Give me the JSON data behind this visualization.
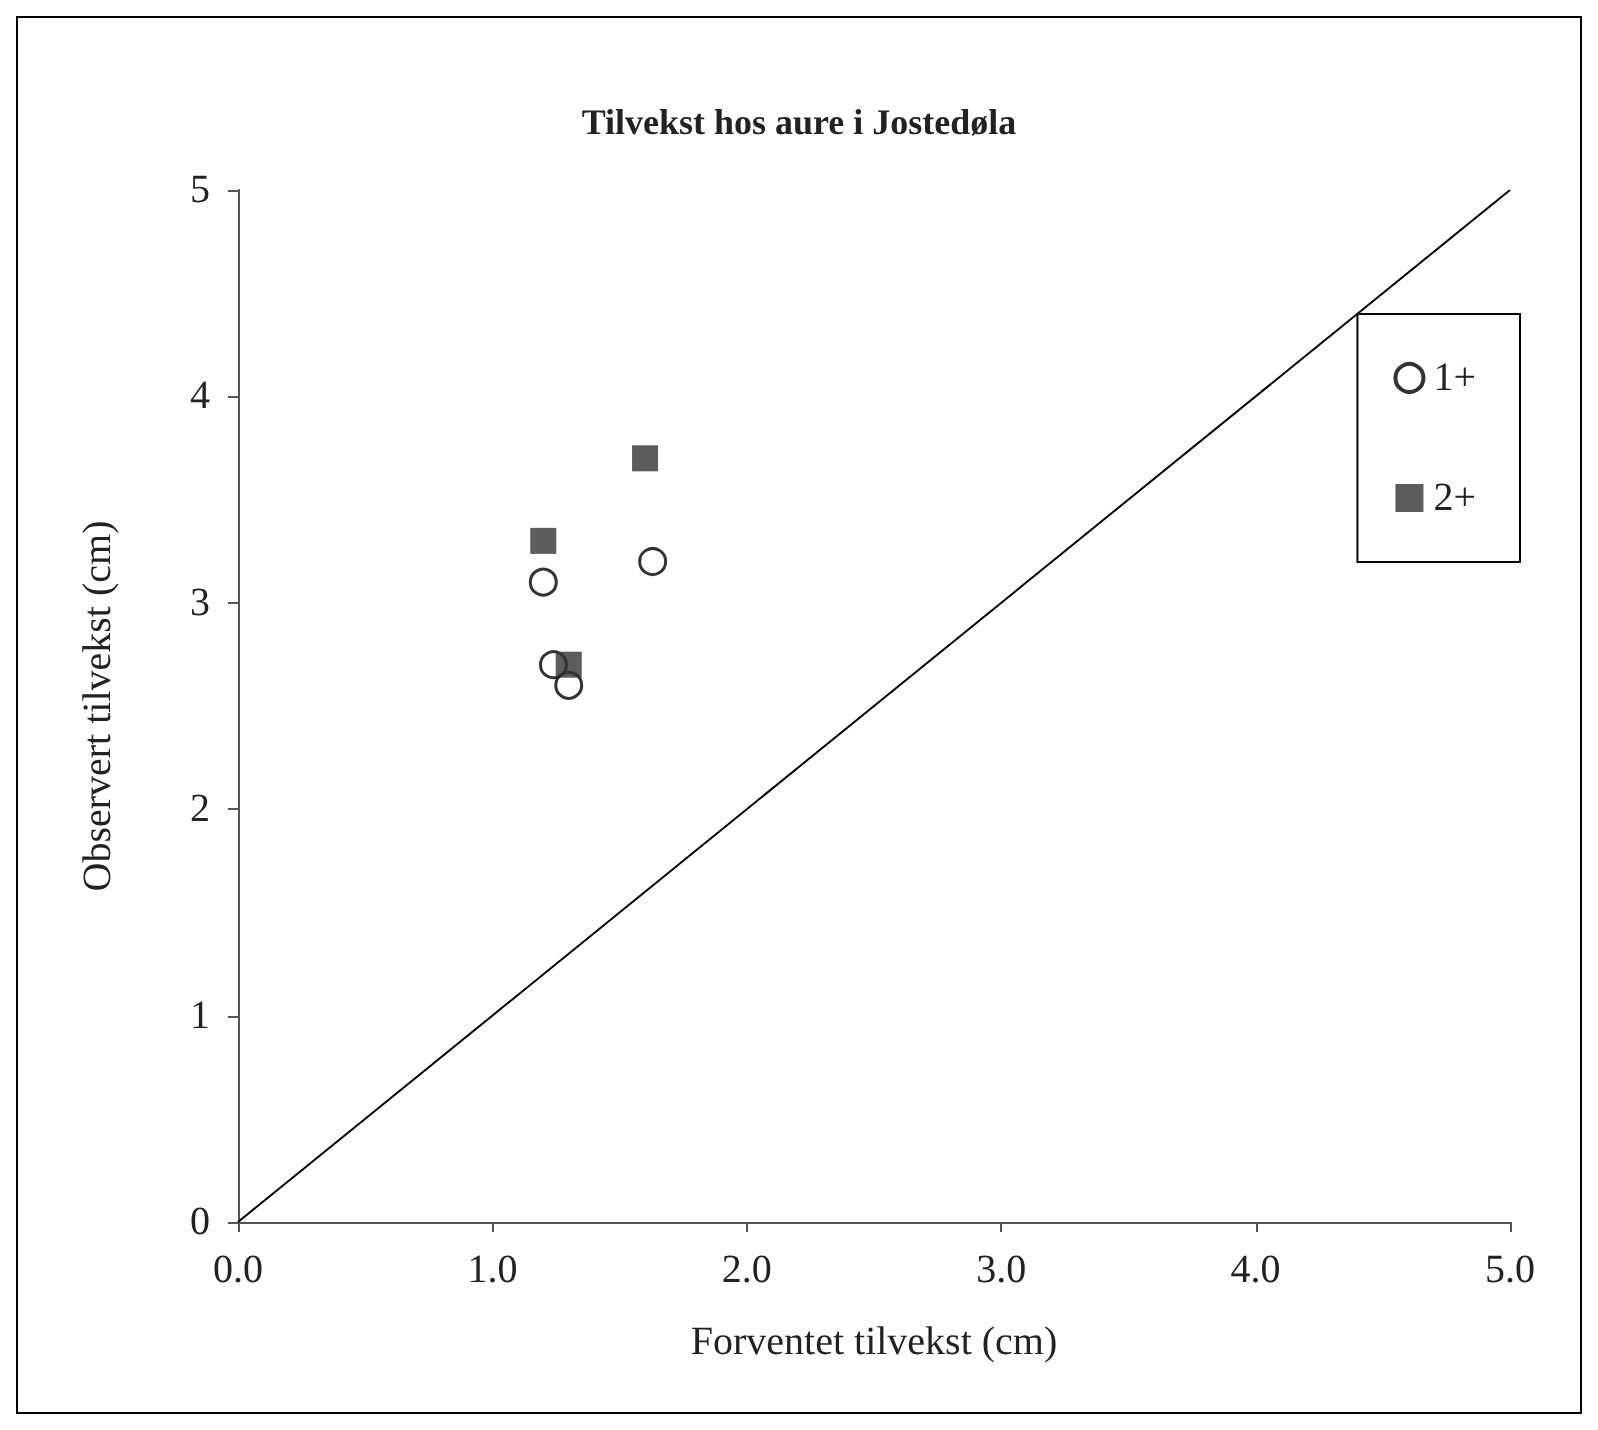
{
  "chart_data": {
    "type": "scatter",
    "title": "Tilvekst hos aure i Jostedøla",
    "xlabel": "Forventet tilvekst (cm)",
    "ylabel": "Observert tilvekst (cm)",
    "xlim": [
      0,
      5
    ],
    "ylim": [
      0,
      5
    ],
    "xticks": [
      {
        "value": 0,
        "label": "0.0"
      },
      {
        "value": 1,
        "label": "1.0"
      },
      {
        "value": 2,
        "label": "2.0"
      },
      {
        "value": 3,
        "label": "3.0"
      },
      {
        "value": 4,
        "label": "4.0"
      },
      {
        "value": 5,
        "label": "5.0"
      }
    ],
    "yticks": [
      0,
      1,
      2,
      3,
      4,
      5
    ],
    "grid": false,
    "legend": "right",
    "series": [
      {
        "name": "1+",
        "color": "#000000",
        "marker": "circle",
        "x": [
          1.2,
          1.63,
          1.24,
          1.3
        ],
        "values": [
          3.1,
          3.2,
          2.7,
          2.6
        ]
      },
      {
        "name": "2+",
        "color": "#333333",
        "marker": "square",
        "x": [
          1.6,
          1.2,
          1.3
        ],
        "values": [
          3.7,
          3.3,
          2.7
        ]
      },
      {
        "type": "line",
        "color": "#000000",
        "marker": "none",
        "x": [
          0,
          5
        ],
        "values": [
          0,
          5
        ]
      }
    ]
  }
}
